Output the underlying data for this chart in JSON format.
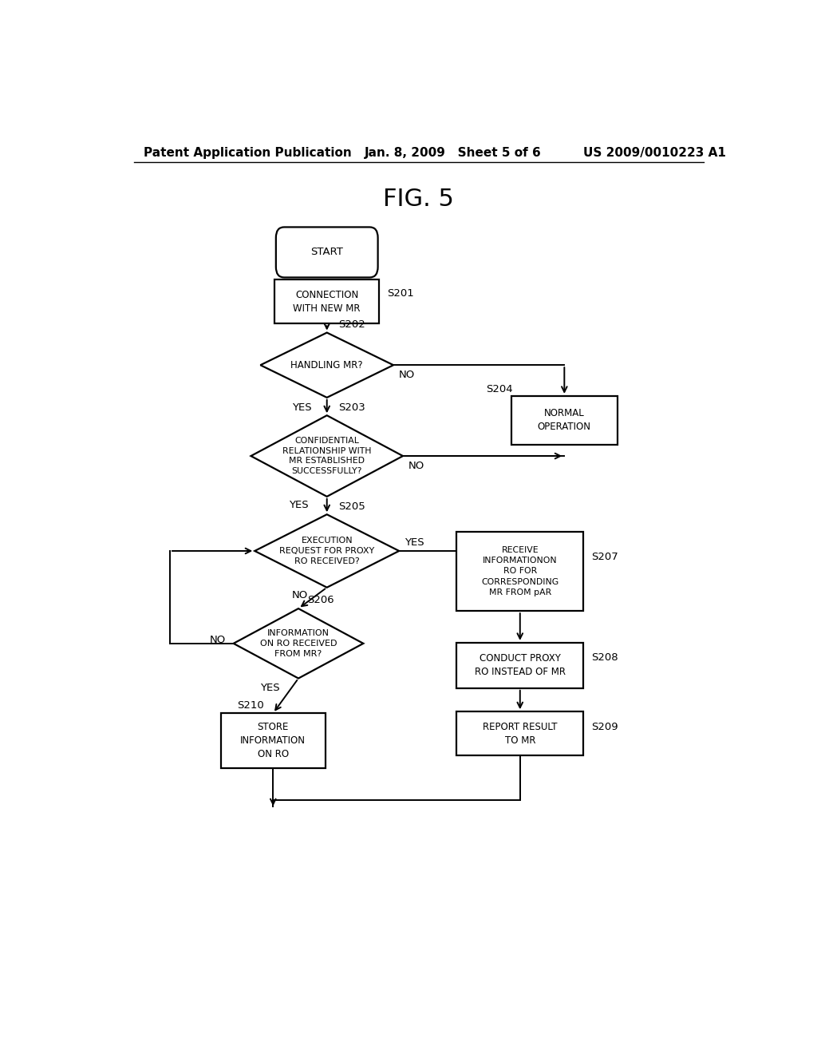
{
  "title": "FIG. 5",
  "header_left": "Patent Application Publication",
  "header_mid": "Jan. 8, 2009   Sheet 5 of 6",
  "header_right": "US 2009/0010223 A1",
  "background": "#ffffff",
  "text_fontsize": 8.5,
  "step_fontsize": 9.5,
  "title_fontsize": 22,
  "header_fontsize": 11
}
